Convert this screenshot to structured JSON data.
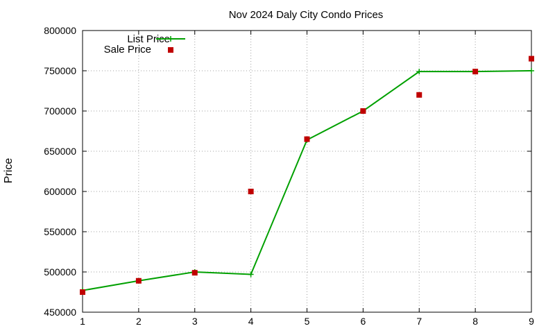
{
  "chart_data": {
    "type": "line",
    "title": "Nov 2024 Daly City Condo Prices",
    "xlabel": "",
    "ylabel": "Price",
    "x": [
      1,
      2,
      3,
      4,
      5,
      6,
      7,
      8,
      9
    ],
    "xlim": [
      1,
      9
    ],
    "ylim": [
      450000,
      800000
    ],
    "xticks": [
      1,
      2,
      3,
      4,
      5,
      6,
      7,
      8,
      9
    ],
    "yticks": [
      450000,
      500000,
      550000,
      600000,
      650000,
      700000,
      750000,
      800000
    ],
    "grid": true,
    "legend_position": "top-left",
    "series": [
      {
        "name": "List Price",
        "style": "line-with-plus-markers",
        "color": "#00a000",
        "values": [
          477000,
          489000,
          500000,
          497000,
          664000,
          700000,
          749000,
          749000,
          750000
        ]
      },
      {
        "name": "Sale Price",
        "style": "square-markers",
        "color": "#c00000",
        "values": [
          475000,
          489000,
          499000,
          600000,
          665000,
          700000,
          720000,
          749000,
          765000
        ]
      }
    ]
  }
}
